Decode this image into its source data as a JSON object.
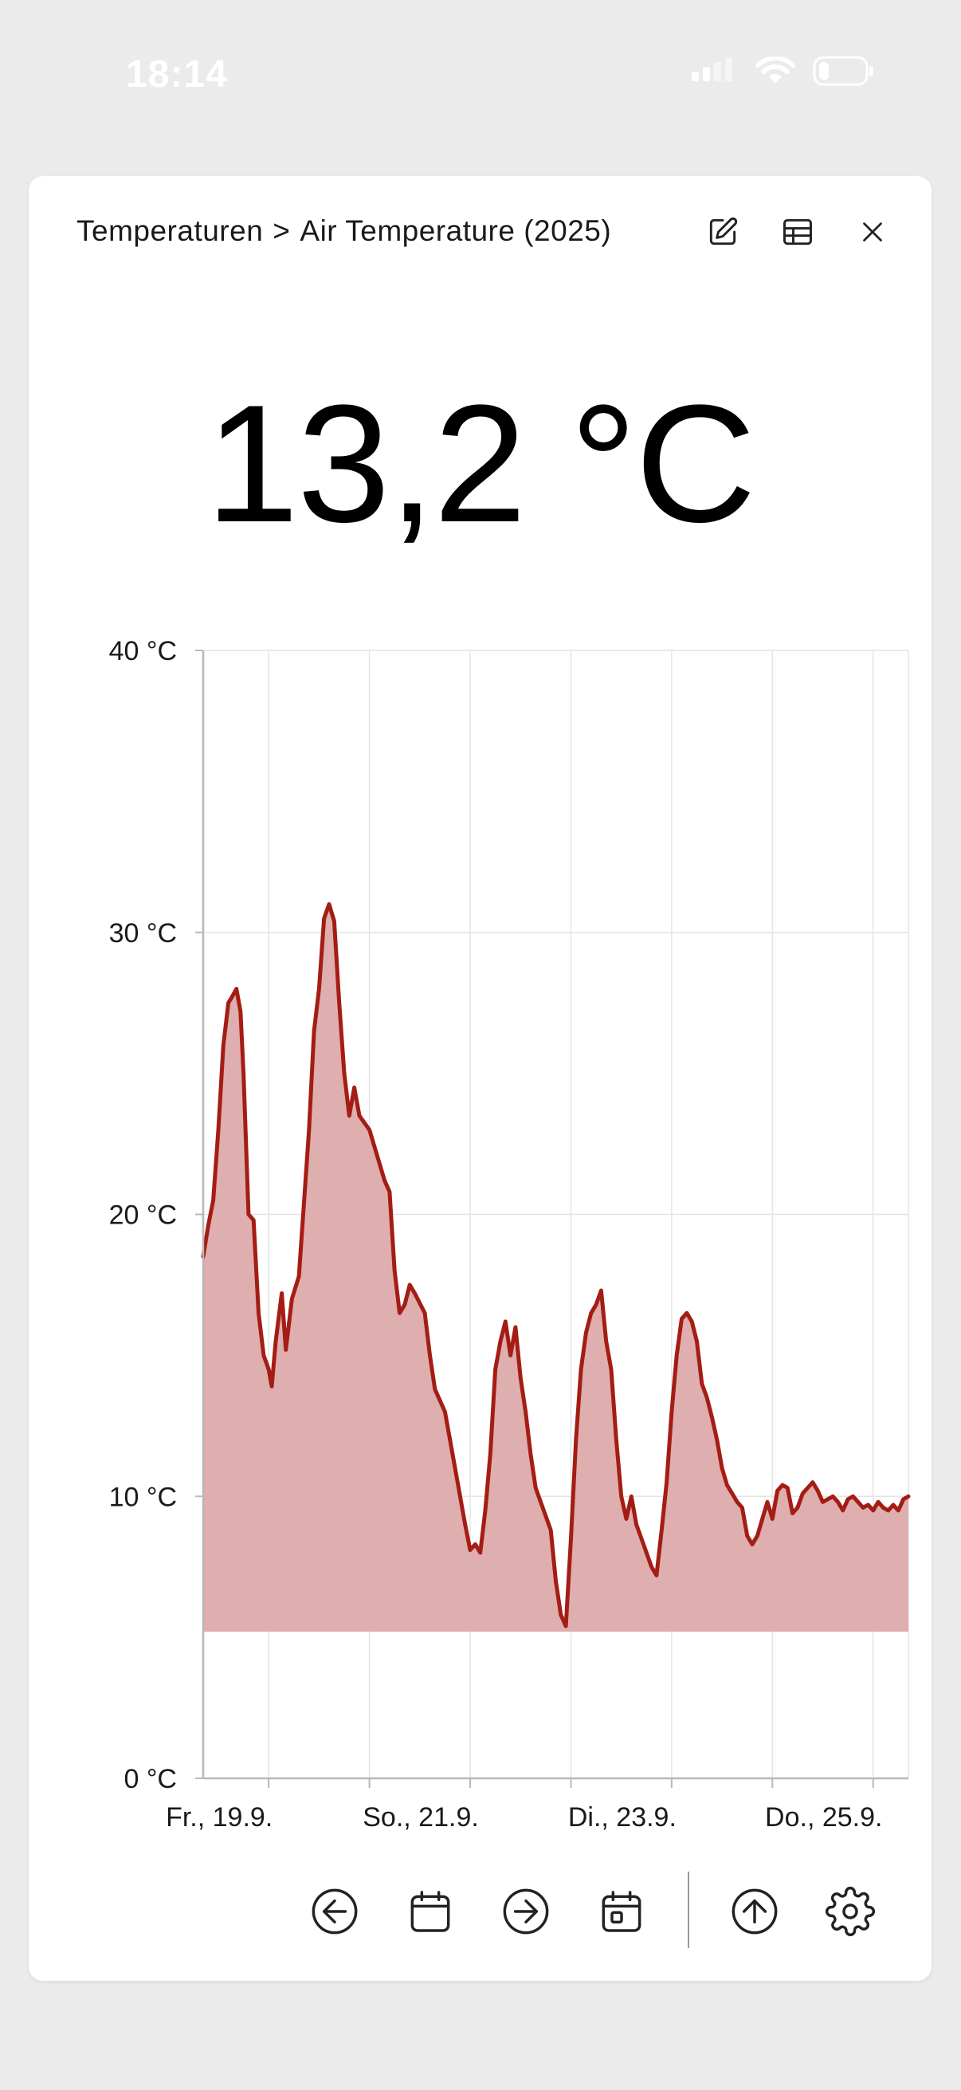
{
  "status": {
    "time": "18:14"
  },
  "header": {
    "crumb_parent": "Temperaturen",
    "crumb_separator": ">",
    "crumb_current": "Air Temperature (2025)",
    "icons": [
      "edit-icon",
      "table-icon",
      "close-icon"
    ]
  },
  "current_value": "13,2 °C",
  "toolbar": {
    "icons": [
      "arrow-left-circle-icon",
      "calendar-icon",
      "arrow-right-circle-icon",
      "calendar-day-icon",
      "arrow-up-circle-icon",
      "gear-icon"
    ]
  },
  "colors": {
    "line": "#a41d14",
    "fill": "#dfaeae",
    "grid": "#e4e4e4",
    "axis": "#b8b8b8"
  },
  "chart_data": {
    "type": "area",
    "title": "",
    "xlabel": "",
    "ylabel": "",
    "ylim": [
      0,
      40
    ],
    "yticks": [
      "0 °C",
      "10 °C",
      "20 °C",
      "30 °C",
      "40 °C"
    ],
    "ytick_values": [
      0,
      10,
      20,
      30,
      40
    ],
    "xlim_days": [
      0,
      7
    ],
    "xticks": [
      {
        "day": 0.65,
        "label": "Fr., 19.9."
      },
      {
        "day": 1.65,
        "label": ""
      },
      {
        "day": 2.65,
        "label": "So., 21.9."
      },
      {
        "day": 3.65,
        "label": ""
      },
      {
        "day": 4.65,
        "label": "Di., 23.9."
      },
      {
        "day": 5.65,
        "label": ""
      },
      {
        "day": 6.65,
        "label": "Do., 25.9."
      }
    ],
    "grid": true,
    "area_baseline": 5.2,
    "series": [
      {
        "values": [
          [
            0.0,
            18.5
          ],
          [
            0.05,
            19.6
          ],
          [
            0.1,
            20.5
          ],
          [
            0.15,
            23.0
          ],
          [
            0.2,
            26.0
          ],
          [
            0.25,
            27.5
          ],
          [
            0.3,
            27.8
          ],
          [
            0.33,
            28.0
          ],
          [
            0.37,
            27.2
          ],
          [
            0.4,
            25.0
          ],
          [
            0.45,
            20.0
          ],
          [
            0.5,
            19.8
          ],
          [
            0.55,
            16.5
          ],
          [
            0.6,
            15.0
          ],
          [
            0.65,
            14.5
          ],
          [
            0.68,
            13.9
          ],
          [
            0.72,
            15.5
          ],
          [
            0.78,
            17.2
          ],
          [
            0.82,
            15.2
          ],
          [
            0.88,
            17.0
          ],
          [
            0.95,
            17.8
          ],
          [
            1.05,
            23.0
          ],
          [
            1.1,
            26.5
          ],
          [
            1.15,
            28.0
          ],
          [
            1.2,
            30.5
          ],
          [
            1.25,
            31.0
          ],
          [
            1.3,
            30.4
          ],
          [
            1.35,
            27.5
          ],
          [
            1.4,
            25.0
          ],
          [
            1.45,
            23.5
          ],
          [
            1.5,
            24.5
          ],
          [
            1.55,
            23.5
          ],
          [
            1.65,
            23.0
          ],
          [
            1.75,
            21.8
          ],
          [
            1.8,
            21.2
          ],
          [
            1.85,
            20.8
          ],
          [
            1.9,
            18.0
          ],
          [
            1.95,
            16.5
          ],
          [
            2.0,
            16.8
          ],
          [
            2.05,
            17.5
          ],
          [
            2.1,
            17.2
          ],
          [
            2.2,
            16.5
          ],
          [
            2.25,
            15.0
          ],
          [
            2.3,
            13.8
          ],
          [
            2.4,
            13.0
          ],
          [
            2.5,
            11.0
          ],
          [
            2.6,
            9.0
          ],
          [
            2.65,
            8.1
          ],
          [
            2.7,
            8.3
          ],
          [
            2.75,
            8.0
          ],
          [
            2.8,
            9.5
          ],
          [
            2.85,
            11.5
          ],
          [
            2.9,
            14.5
          ],
          [
            2.95,
            15.5
          ],
          [
            3.0,
            16.2
          ],
          [
            3.05,
            15.0
          ],
          [
            3.1,
            16.0
          ],
          [
            3.15,
            14.2
          ],
          [
            3.2,
            13.0
          ],
          [
            3.25,
            11.5
          ],
          [
            3.3,
            10.3
          ],
          [
            3.35,
            9.8
          ],
          [
            3.4,
            9.3
          ],
          [
            3.45,
            8.8
          ],
          [
            3.5,
            7.0
          ],
          [
            3.55,
            5.8
          ],
          [
            3.6,
            5.4
          ],
          [
            3.65,
            8.5
          ],
          [
            3.7,
            12.0
          ],
          [
            3.75,
            14.5
          ],
          [
            3.8,
            15.8
          ],
          [
            3.85,
            16.5
          ],
          [
            3.9,
            16.8
          ],
          [
            3.95,
            17.3
          ],
          [
            4.0,
            15.5
          ],
          [
            4.05,
            14.5
          ],
          [
            4.1,
            12.0
          ],
          [
            4.15,
            10.0
          ],
          [
            4.2,
            9.2
          ],
          [
            4.25,
            10.0
          ],
          [
            4.3,
            9.0
          ],
          [
            4.35,
            8.5
          ],
          [
            4.4,
            8.0
          ],
          [
            4.45,
            7.5
          ],
          [
            4.5,
            7.2
          ],
          [
            4.55,
            8.8
          ],
          [
            4.6,
            10.5
          ],
          [
            4.65,
            13.0
          ],
          [
            4.7,
            15.0
          ],
          [
            4.75,
            16.3
          ],
          [
            4.8,
            16.5
          ],
          [
            4.85,
            16.2
          ],
          [
            4.9,
            15.5
          ],
          [
            4.95,
            14.0
          ],
          [
            5.0,
            13.5
          ],
          [
            5.05,
            12.8
          ],
          [
            5.1,
            12.0
          ],
          [
            5.15,
            11.0
          ],
          [
            5.2,
            10.4
          ],
          [
            5.25,
            10.1
          ],
          [
            5.3,
            9.8
          ],
          [
            5.35,
            9.6
          ],
          [
            5.4,
            8.6
          ],
          [
            5.45,
            8.3
          ],
          [
            5.5,
            8.6
          ],
          [
            5.55,
            9.2
          ],
          [
            5.6,
            9.8
          ],
          [
            5.65,
            9.2
          ],
          [
            5.7,
            10.2
          ],
          [
            5.75,
            10.4
          ],
          [
            5.8,
            10.3
          ],
          [
            5.85,
            9.4
          ],
          [
            5.9,
            9.6
          ],
          [
            5.95,
            10.1
          ],
          [
            6.0,
            10.3
          ],
          [
            6.05,
            10.5
          ],
          [
            6.1,
            10.2
          ],
          [
            6.15,
            9.8
          ],
          [
            6.2,
            9.9
          ],
          [
            6.25,
            10.0
          ],
          [
            6.3,
            9.8
          ],
          [
            6.35,
            9.5
          ],
          [
            6.4,
            9.9
          ],
          [
            6.45,
            10.0
          ],
          [
            6.5,
            9.8
          ],
          [
            6.55,
            9.6
          ],
          [
            6.6,
            9.7
          ],
          [
            6.65,
            9.5
          ],
          [
            6.7,
            9.8
          ],
          [
            6.75,
            9.6
          ],
          [
            6.8,
            9.5
          ],
          [
            6.85,
            9.7
          ],
          [
            6.9,
            9.5
          ],
          [
            6.95,
            9.9
          ],
          [
            7.0,
            10.0
          ]
        ]
      }
    ]
  }
}
